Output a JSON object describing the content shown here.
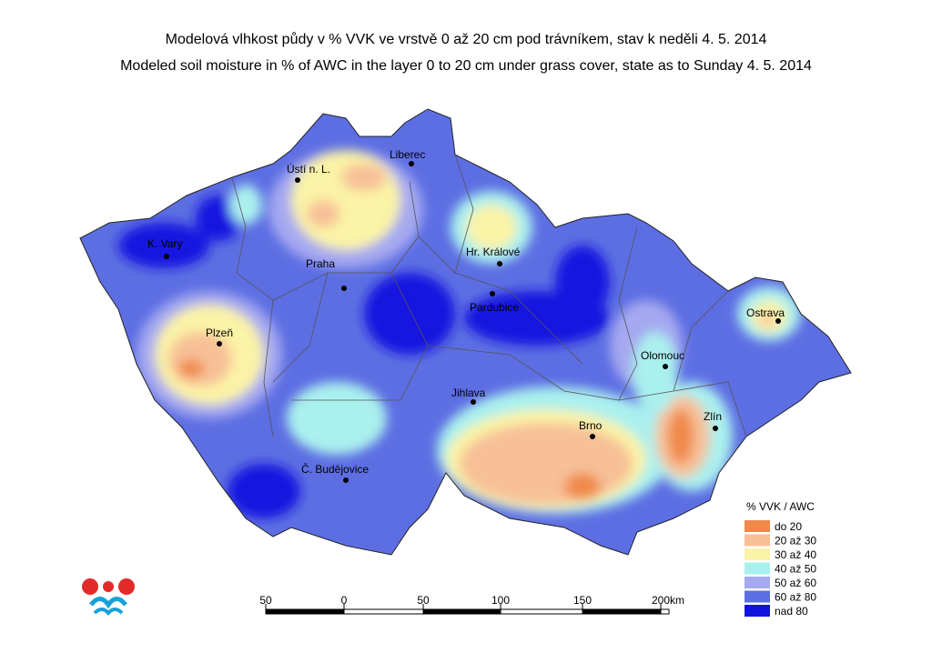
{
  "title": {
    "cz": "Modelová vlhkost půdy v % VVK ve vrstvě 0 až 20 cm pod trávníkem, stav k neděli 4. 5. 2014",
    "en": "Modeled soil moisture in % of AWC in the layer 0 to 20 cm under grass cover, state as to Sunday 4. 5. 2014"
  },
  "cities": [
    {
      "name": "Liberec"
    },
    {
      "name": "Ústí n. L."
    },
    {
      "name": "K. Vary"
    },
    {
      "name": "Praha"
    },
    {
      "name": "Hr. Králové"
    },
    {
      "name": "Pardubice"
    },
    {
      "name": "Plzeň"
    },
    {
      "name": "Ostrava"
    },
    {
      "name": "Olomouc"
    },
    {
      "name": "Jihlava"
    },
    {
      "name": "Brno"
    },
    {
      "name": "Zlín"
    },
    {
      "name": "Č. Budějovice"
    }
  ],
  "legend": {
    "title": "% VVK / AWC",
    "items": [
      {
        "label": "do 20",
        "color": "#f0894a"
      },
      {
        "label": "20 až 30",
        "color": "#f7c097"
      },
      {
        "label": "30 až 40",
        "color": "#fbf3a6"
      },
      {
        "label": "40 až 50",
        "color": "#aaf0ee"
      },
      {
        "label": "50 až 60",
        "color": "#a5a9f0"
      },
      {
        "label": "60 až 80",
        "color": "#5d6ee3"
      },
      {
        "label": "nad 80",
        "color": "#1212e0"
      }
    ]
  },
  "scale": {
    "labels": [
      "50",
      "0",
      "50",
      "100",
      "150",
      "200"
    ],
    "unit": "km"
  }
}
